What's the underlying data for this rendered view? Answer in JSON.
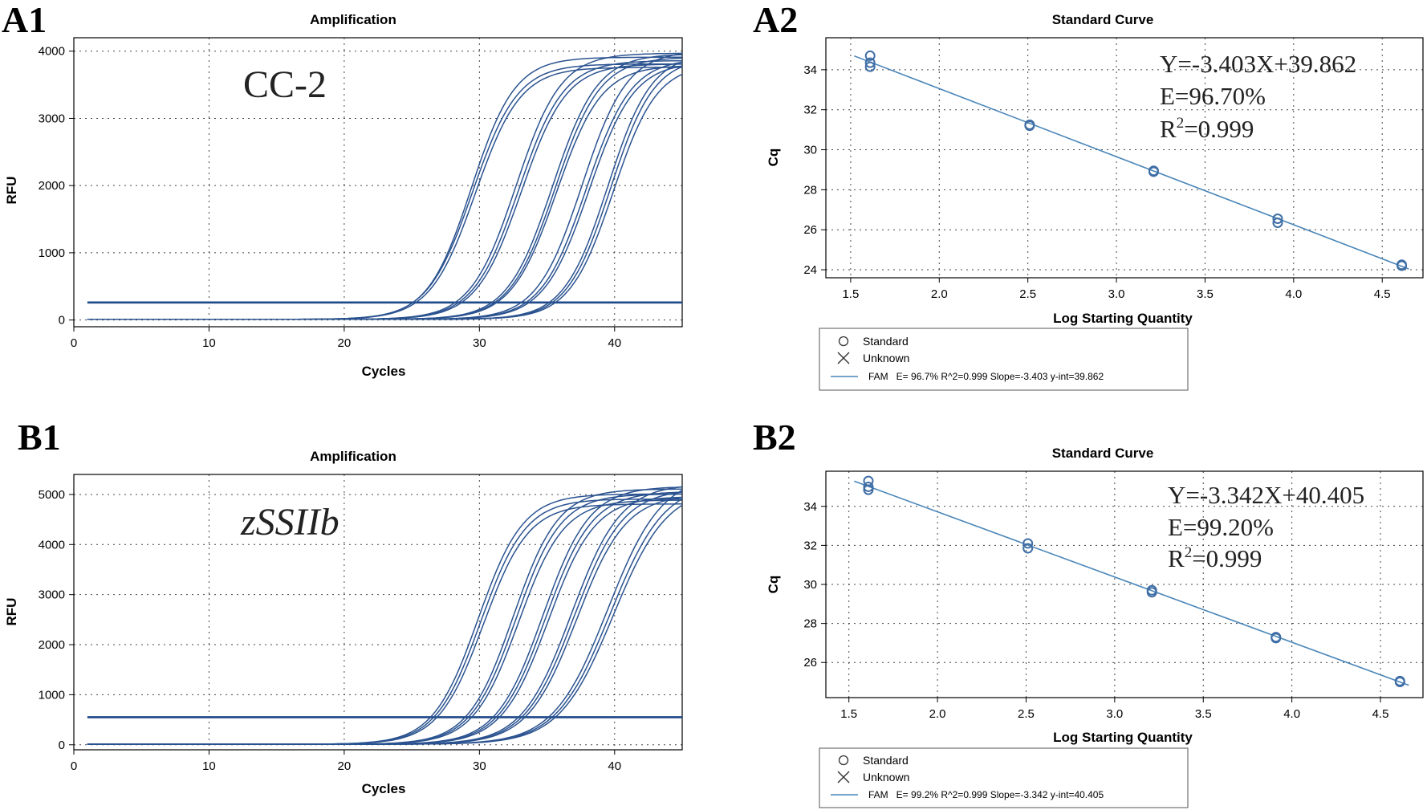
{
  "colors": {
    "curve": "#2b5390",
    "threshold": "#1f4a8a",
    "fit": "#4a86b8",
    "marker": "#3f6ea6"
  },
  "chart_data": [
    {
      "id": "A1",
      "panel_label": "A1",
      "type": "line",
      "title": "Amplification",
      "xlabel": "Cycles",
      "ylabel": "RFU",
      "annotation": "CC-2",
      "annotation_italic": false,
      "xlim": [
        0,
        45
      ],
      "ylim": [
        -100,
        4200
      ],
      "xticks": [
        0,
        10,
        20,
        30,
        40
      ],
      "yticks": [
        0,
        1000,
        2000,
        3000,
        4000
      ],
      "threshold": 260,
      "baseline_start_cycle": 1,
      "end_cycle": 45,
      "curves": [
        {
          "ct": 24.9,
          "plateau": 3900,
          "k": 0.62
        },
        {
          "ct": 25.0,
          "plateau": 3800,
          "k": 0.6
        },
        {
          "ct": 25.2,
          "plateau": 3750,
          "k": 0.6
        },
        {
          "ct": 28.2,
          "plateau": 3960,
          "k": 0.6
        },
        {
          "ct": 28.4,
          "plateau": 3850,
          "k": 0.6
        },
        {
          "ct": 28.6,
          "plateau": 3800,
          "k": 0.6
        },
        {
          "ct": 30.9,
          "plateau": 3950,
          "k": 0.6
        },
        {
          "ct": 31.1,
          "plateau": 3900,
          "k": 0.6
        },
        {
          "ct": 31.2,
          "plateau": 3780,
          "k": 0.6
        },
        {
          "ct": 33.1,
          "plateau": 4000,
          "k": 0.6
        },
        {
          "ct": 33.4,
          "plateau": 3880,
          "k": 0.6
        },
        {
          "ct": 33.6,
          "plateau": 3830,
          "k": 0.6
        },
        {
          "ct": 35.0,
          "plateau": 3960,
          "k": 0.62
        },
        {
          "ct": 35.2,
          "plateau": 3900,
          "k": 0.62
        },
        {
          "ct": 35.4,
          "plateau": 3800,
          "k": 0.62
        }
      ]
    },
    {
      "id": "A2",
      "panel_label": "A2",
      "type": "scatter",
      "title": "Standard Curve",
      "xlabel": "Log Starting Quantity",
      "ylabel": "Cq",
      "xlim": [
        1.36,
        4.73
      ],
      "ylim": [
        23.6,
        35.6
      ],
      "xticks": [
        1.5,
        2.0,
        2.5,
        3.0,
        3.5,
        4.0,
        4.5
      ],
      "xtick_labels": [
        "1.5",
        "2.0",
        "2.5",
        "3.0",
        "3.5",
        "4.0",
        "4.5"
      ],
      "yticks": [
        24,
        26,
        28,
        30,
        32,
        34
      ],
      "ytick_labels": [
        "24",
        "26",
        "28",
        "30",
        "32",
        "34"
      ],
      "points": [
        {
          "x": 1.61,
          "y": 34.7
        },
        {
          "x": 1.61,
          "y": 34.35
        },
        {
          "x": 1.61,
          "y": 34.15
        },
        {
          "x": 2.51,
          "y": 31.25
        },
        {
          "x": 2.51,
          "y": 31.2
        },
        {
          "x": 3.21,
          "y": 28.95
        },
        {
          "x": 3.21,
          "y": 28.9
        },
        {
          "x": 3.91,
          "y": 26.55
        },
        {
          "x": 3.91,
          "y": 26.35
        },
        {
          "x": 4.61,
          "y": 24.25
        },
        {
          "x": 4.61,
          "y": 24.2
        }
      ],
      "fit": {
        "slope": -3.403,
        "intercept": 39.862,
        "x_from": 1.52,
        "x_to": 4.65
      },
      "equation": "Y=-3.403X+39.862",
      "efficiency": "E=96.70%",
      "r2_prefix": "R",
      "r2_sup": "2",
      "r2_value": "=0.999",
      "legend": {
        "standard": "Standard",
        "unknown": "Unknown",
        "fam": "FAM   E= 96.7% R^2=0.999 Slope=-3.403 y-int=39.862"
      }
    },
    {
      "id": "B1",
      "panel_label": "B1",
      "type": "line",
      "title": "Amplification",
      "xlabel": "Cycles",
      "ylabel": "RFU",
      "annotation": "zSSIIb",
      "annotation_italic": true,
      "xlim": [
        0,
        45
      ],
      "ylim": [
        -100,
        5400
      ],
      "xticks": [
        0,
        10,
        20,
        30,
        40
      ],
      "yticks": [
        0,
        1000,
        2000,
        3000,
        4000,
        5000
      ],
      "threshold": 550,
      "baseline_start_cycle": 1,
      "end_cycle": 45,
      "curves": [
        {
          "ct": 25.4,
          "plateau": 5000,
          "k": 0.6
        },
        {
          "ct": 25.6,
          "plateau": 4900,
          "k": 0.6
        },
        {
          "ct": 25.8,
          "plateau": 4800,
          "k": 0.6
        },
        {
          "ct": 28.0,
          "plateau": 5100,
          "k": 0.6
        },
        {
          "ct": 28.2,
          "plateau": 5000,
          "k": 0.6
        },
        {
          "ct": 28.4,
          "plateau": 4880,
          "k": 0.6
        },
        {
          "ct": 30.2,
          "plateau": 5150,
          "k": 0.58
        },
        {
          "ct": 30.4,
          "plateau": 5050,
          "k": 0.58
        },
        {
          "ct": 30.6,
          "plateau": 4950,
          "k": 0.58
        },
        {
          "ct": 32.3,
          "plateau": 5200,
          "k": 0.55
        },
        {
          "ct": 32.5,
          "plateau": 5100,
          "k": 0.55
        },
        {
          "ct": 32.7,
          "plateau": 5000,
          "k": 0.55
        },
        {
          "ct": 35.0,
          "plateau": 5400,
          "k": 0.5
        },
        {
          "ct": 35.2,
          "plateau": 5250,
          "k": 0.5
        },
        {
          "ct": 35.4,
          "plateau": 5150,
          "k": 0.5
        }
      ]
    },
    {
      "id": "B2",
      "panel_label": "B2",
      "type": "scatter",
      "title": "Standard Curve",
      "xlabel": "Log Starting Quantity",
      "ylabel": "Cq",
      "xlim": [
        1.37,
        4.74
      ],
      "ylim": [
        24.2,
        35.8
      ],
      "xticks": [
        1.5,
        2.0,
        2.5,
        3.0,
        3.5,
        4.0,
        4.5
      ],
      "xtick_labels": [
        "1.5",
        "2.0",
        "2.5",
        "3.0",
        "3.5",
        "4.0",
        "4.5"
      ],
      "yticks": [
        26,
        28,
        30,
        32,
        34
      ],
      "ytick_labels": [
        "26",
        "28",
        "30",
        "32",
        "34"
      ],
      "points": [
        {
          "x": 1.61,
          "y": 35.3
        },
        {
          "x": 1.61,
          "y": 35.0
        },
        {
          "x": 1.61,
          "y": 34.85
        },
        {
          "x": 2.51,
          "y": 32.1
        },
        {
          "x": 2.51,
          "y": 31.85
        },
        {
          "x": 3.21,
          "y": 29.7
        },
        {
          "x": 3.21,
          "y": 29.6
        },
        {
          "x": 3.91,
          "y": 27.3
        },
        {
          "x": 3.91,
          "y": 27.25
        },
        {
          "x": 4.61,
          "y": 25.05
        },
        {
          "x": 4.61,
          "y": 25.0
        }
      ],
      "fit": {
        "slope": -3.342,
        "intercept": 40.405,
        "x_from": 1.53,
        "x_to": 4.66
      },
      "equation": "Y=-3.342X+40.405",
      "efficiency": "E=99.20%",
      "r2_prefix": "R",
      "r2_sup": "2",
      "r2_value": "=0.999",
      "legend": {
        "standard": "Standard",
        "unknown": "Unknown",
        "fam": "FAM   E= 99.2% R^2=0.999 Slope=-3.342 y-int=40.405"
      }
    }
  ]
}
